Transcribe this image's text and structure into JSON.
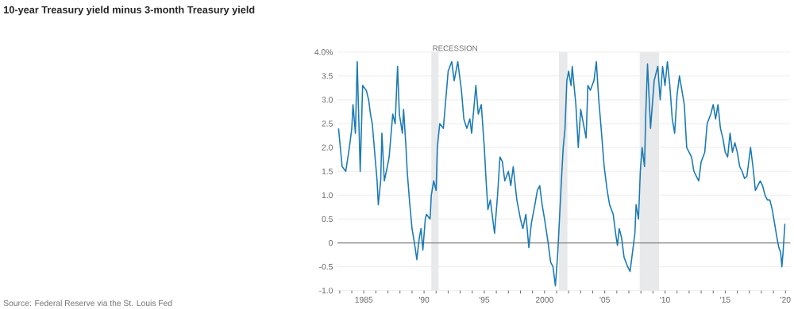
{
  "chart_data": {
    "type": "line",
    "title": "10-year Treasury yield minus 3-month Treasury yield",
    "annotations": [
      "Source: Federal Reserve via the St. Louis Fed"
    ],
    "x": [
      1982.9,
      1983.2,
      1983.5,
      1983.8,
      1984.0,
      1984.1,
      1984.3,
      1984.45,
      1984.7,
      1984.9,
      1985.2,
      1985.4,
      1985.55,
      1985.7,
      1986.1,
      1986.2,
      1986.4,
      1986.5,
      1986.7,
      1986.95,
      1987.1,
      1987.4,
      1987.6,
      1987.8,
      1987.95,
      1988.2,
      1988.3,
      1988.5,
      1988.6,
      1988.8,
      1989.0,
      1989.2,
      1989.4,
      1989.6,
      1989.75,
      1989.9,
      1990.1,
      1990.2,
      1990.5,
      1990.6,
      1990.8,
      1991.0,
      1991.1,
      1991.3,
      1991.6,
      1991.8,
      1992.0,
      1992.3,
      1992.5,
      1992.8,
      1993.1,
      1993.3,
      1993.55,
      1993.8,
      1993.95,
      1994.3,
      1994.5,
      1994.75,
      1995.0,
      1995.15,
      1995.3,
      1995.5,
      1995.85,
      1996.1,
      1996.3,
      1996.5,
      1996.7,
      1997.0,
      1997.2,
      1997.4,
      1997.7,
      1998.0,
      1998.2,
      1998.45,
      1998.7,
      1998.9,
      1999.2,
      1999.4,
      1999.6,
      1999.8,
      2000.0,
      2000.3,
      2000.5,
      2000.7,
      2000.9,
      2001.1,
      2001.2,
      2001.4,
      2001.55,
      2001.7,
      2001.85,
      2002.0,
      2002.2,
      2002.3,
      2002.6,
      2002.8,
      2003.0,
      2003.3,
      2003.45,
      2003.6,
      2003.8,
      2004.1,
      2004.3,
      2004.5,
      2004.7,
      2004.95,
      2005.2,
      2005.4,
      2005.7,
      2005.9,
      2006.05,
      2006.2,
      2006.4,
      2006.6,
      2006.9,
      2007.1,
      2007.25,
      2007.5,
      2007.6,
      2007.8,
      2007.95,
      2008.1,
      2008.3,
      2008.4,
      2008.55,
      2008.8,
      2009.1,
      2009.4,
      2009.6,
      2009.8,
      2010.0,
      2010.2,
      2010.4,
      2010.6,
      2010.8,
      2011.0,
      2011.2,
      2011.4,
      2011.6,
      2011.8,
      2012.0,
      2012.2,
      2012.4,
      2012.6,
      2012.8,
      2013.0,
      2013.3,
      2013.5,
      2013.8,
      2014.0,
      2014.2,
      2014.4,
      2014.6,
      2014.8,
      2015.0,
      2015.2,
      2015.4,
      2015.6,
      2015.8,
      2016.0,
      2016.2,
      2016.4,
      2016.6,
      2016.8,
      2017.1,
      2017.3,
      2017.5,
      2017.7,
      2017.9,
      2018.1,
      2018.3,
      2018.5,
      2018.7,
      2018.9,
      2019.1,
      2019.3,
      2019.45,
      2019.6,
      2019.7,
      2019.8,
      2019.9,
      2019.95
    ],
    "series": [
      {
        "color": "#1a7ab5",
        "values": [
          2.4,
          1.6,
          1.5,
          2.0,
          2.4,
          2.9,
          2.3,
          3.8,
          1.5,
          3.3,
          3.2,
          3.0,
          2.7,
          2.5,
          1.3,
          0.8,
          1.3,
          2.3,
          1.3,
          1.6,
          1.8,
          2.7,
          2.5,
          3.7,
          2.7,
          2.3,
          2.8,
          2.0,
          1.5,
          0.85,
          0.3,
          0.0,
          -0.35,
          0.1,
          0.3,
          -0.15,
          0.5,
          0.6,
          0.5,
          1.0,
          1.3,
          1.1,
          2.0,
          2.5,
          2.4,
          3.0,
          3.6,
          3.8,
          3.4,
          3.8,
          3.2,
          2.6,
          2.4,
          2.6,
          2.3,
          3.3,
          2.7,
          2.9,
          2.0,
          1.3,
          0.7,
          0.9,
          0.2,
          1.0,
          1.8,
          1.7,
          1.3,
          1.5,
          1.2,
          1.6,
          0.9,
          0.5,
          0.3,
          0.6,
          -0.1,
          0.4,
          0.8,
          1.1,
          1.2,
          0.8,
          0.5,
          0.0,
          -0.4,
          -0.5,
          -0.9,
          -0.2,
          0.3,
          1.3,
          2.0,
          2.4,
          3.4,
          3.6,
          3.3,
          3.7,
          2.9,
          2.0,
          2.8,
          2.4,
          2.2,
          3.3,
          3.2,
          3.4,
          3.8,
          3.0,
          2.4,
          1.6,
          1.1,
          0.8,
          0.6,
          0.2,
          -0.05,
          0.3,
          0.1,
          -0.3,
          -0.5,
          -0.6,
          -0.3,
          0.2,
          0.8,
          0.5,
          1.5,
          2.0,
          1.6,
          2.7,
          3.75,
          2.4,
          3.4,
          3.7,
          3.0,
          3.7,
          3.3,
          3.8,
          3.3,
          2.6,
          2.3,
          3.1,
          3.5,
          3.2,
          2.9,
          2.0,
          1.9,
          1.8,
          1.5,
          1.4,
          1.3,
          1.7,
          1.9,
          2.5,
          2.7,
          2.9,
          2.6,
          2.9,
          2.4,
          2.2,
          1.9,
          1.8,
          2.3,
          1.9,
          2.1,
          1.9,
          1.6,
          1.5,
          1.35,
          1.4,
          2.0,
          1.6,
          1.1,
          1.2,
          1.3,
          1.2,
          1.0,
          0.9,
          0.9,
          0.7,
          0.4,
          0.1,
          -0.1,
          -0.2,
          -0.5,
          -0.2,
          0.2,
          0.4
        ]
      }
    ],
    "xlim": [
      1982.8,
      2020.4
    ],
    "xticks": [
      {
        "value": 1983,
        "label": null
      },
      {
        "value": 1984,
        "label": null
      },
      {
        "value": 1985,
        "label": "1985"
      },
      {
        "value": 1986,
        "label": null
      },
      {
        "value": 1987,
        "label": null
      },
      {
        "value": 1988,
        "label": null
      },
      {
        "value": 1989,
        "label": null
      },
      {
        "value": 1990,
        "label": "'90"
      },
      {
        "value": 1991,
        "label": null
      },
      {
        "value": 1992,
        "label": null
      },
      {
        "value": 1993,
        "label": null
      },
      {
        "value": 1994,
        "label": null
      },
      {
        "value": 1995,
        "label": "'95"
      },
      {
        "value": 1996,
        "label": null
      },
      {
        "value": 1997,
        "label": null
      },
      {
        "value": 1998,
        "label": null
      },
      {
        "value": 1999,
        "label": null
      },
      {
        "value": 2000,
        "label": "2000"
      },
      {
        "value": 2001,
        "label": null
      },
      {
        "value": 2002,
        "label": null
      },
      {
        "value": 2003,
        "label": null
      },
      {
        "value": 2004,
        "label": null
      },
      {
        "value": 2005,
        "label": "'05"
      },
      {
        "value": 2006,
        "label": null
      },
      {
        "value": 2007,
        "label": null
      },
      {
        "value": 2008,
        "label": null
      },
      {
        "value": 2009,
        "label": null
      },
      {
        "value": 2010,
        "label": "'10"
      },
      {
        "value": 2011,
        "label": null
      },
      {
        "value": 2012,
        "label": null
      },
      {
        "value": 2013,
        "label": null
      },
      {
        "value": 2014,
        "label": null
      },
      {
        "value": 2015,
        "label": "'15"
      },
      {
        "value": 2016,
        "label": null
      },
      {
        "value": 2017,
        "label": null
      },
      {
        "value": 2018,
        "label": null
      },
      {
        "value": 2019,
        "label": null
      },
      {
        "value": 2020,
        "label": "'20"
      }
    ],
    "ylim": [
      -1.0,
      4.0
    ],
    "yticks": [
      {
        "value": -1.0,
        "label": "-1.0"
      },
      {
        "value": -0.5,
        "label": "-0.5"
      },
      0,
      {
        "value": 0.5,
        "label": "0.5"
      },
      {
        "value": 1.0,
        "label": "1.0"
      },
      {
        "value": 1.5,
        "label": "1.5"
      },
      {
        "value": 2.0,
        "label": "2.0"
      },
      {
        "value": 2.5,
        "label": "2.5"
      },
      {
        "value": 3.0,
        "label": "3.0"
      },
      {
        "value": 3.5,
        "label": "3.5"
      },
      {
        "value": 4.0,
        "label": "4.0%"
      }
    ],
    "grid": "y",
    "ref_lines": [
      {
        "axis": "y",
        "value": 0,
        "color": "#7f7f7f"
      }
    ],
    "bands": [
      {
        "axis": "x",
        "from": 1990.6,
        "to": 1991.2,
        "label": "RECESSION",
        "color": "#e8e9ea"
      },
      {
        "axis": "x",
        "from": 2001.2,
        "to": 2001.9,
        "color": "#e8e9ea"
      },
      {
        "axis": "x",
        "from": 2007.9,
        "to": 2009.5,
        "color": "#e8e9ea"
      }
    ]
  }
}
